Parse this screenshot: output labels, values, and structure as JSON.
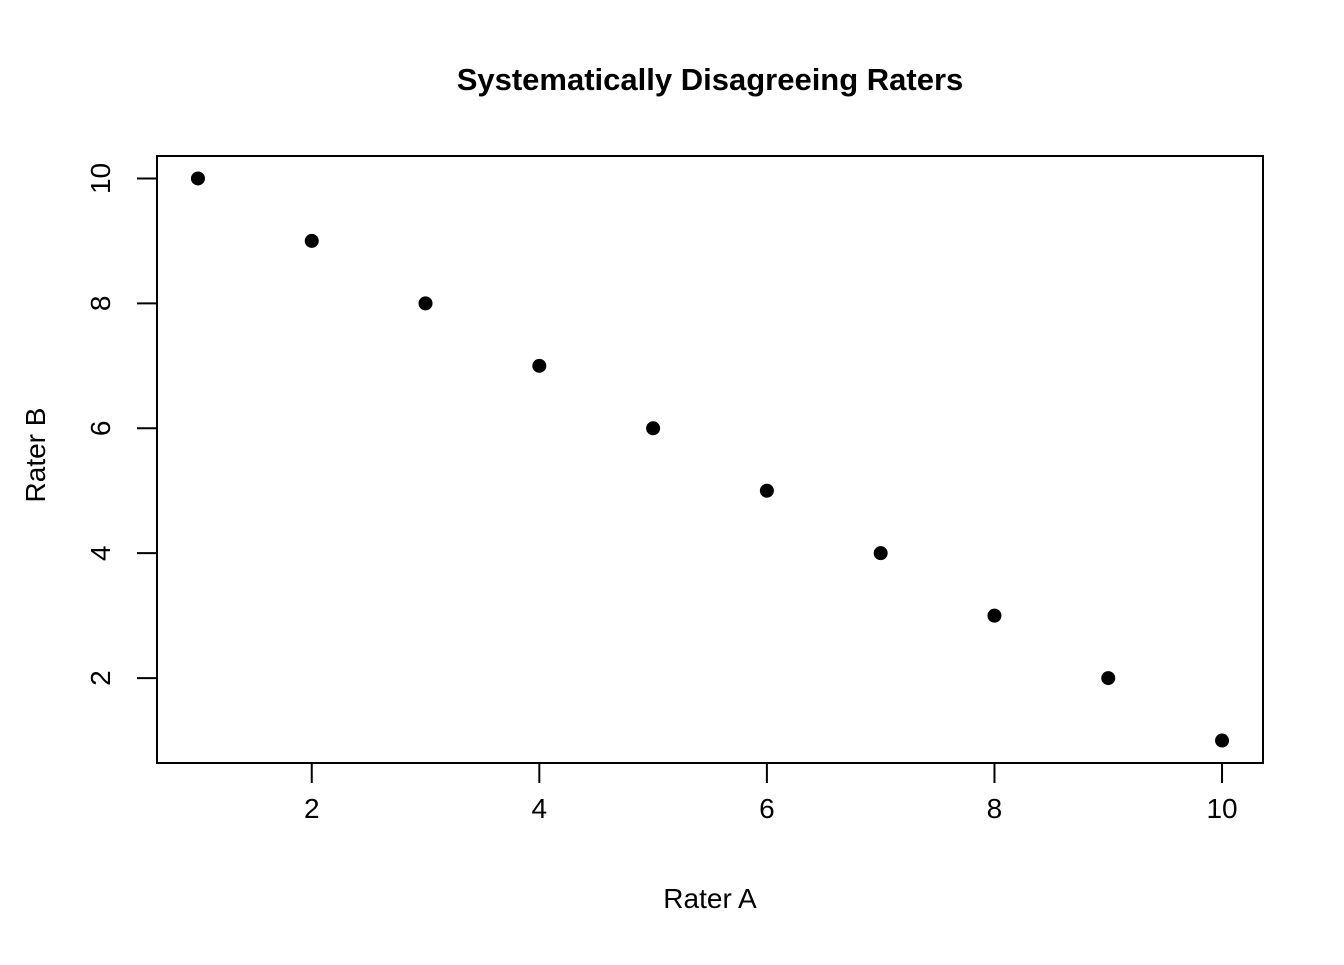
{
  "chart_data": {
    "type": "scatter",
    "title": "Systematically Disagreeing Raters",
    "xlabel": "Rater A",
    "ylabel": "Rater B",
    "x": [
      1,
      2,
      3,
      4,
      5,
      6,
      7,
      8,
      9,
      10
    ],
    "y": [
      10,
      9,
      8,
      7,
      6,
      5,
      4,
      3,
      2,
      1
    ],
    "x_ticks": [
      2,
      4,
      6,
      8,
      10
    ],
    "y_ticks": [
      2,
      4,
      6,
      8,
      10
    ],
    "xlim": [
      0.64,
      10.36
    ],
    "ylim": [
      0.64,
      10.36
    ],
    "point_color": "#000000",
    "axis_color": "#000000",
    "background_color": "#FFFFFF",
    "point_radius": 7,
    "legend": "none",
    "grid": "off"
  }
}
